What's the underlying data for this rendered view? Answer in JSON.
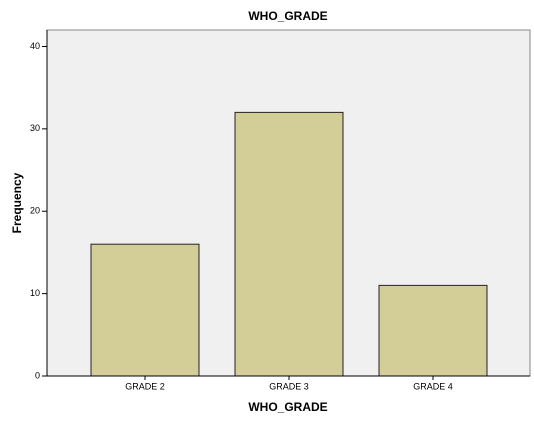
{
  "chart_data": {
    "type": "bar",
    "title": "WHO_GRADE",
    "x_label": "WHO_GRADE",
    "y_label": "Frequency",
    "categories": [
      "GRADE 2",
      "GRADE 3",
      "GRADE 4"
    ],
    "values": [
      16,
      32,
      11
    ],
    "color": "#d3ce97",
    "ylim": [
      0,
      42
    ],
    "yticks": [
      0,
      10,
      20,
      30,
      40
    ],
    "grid": false
  }
}
